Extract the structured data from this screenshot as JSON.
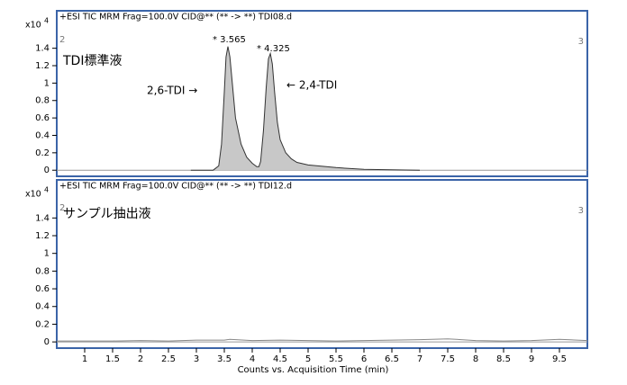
{
  "chart_data": [
    {
      "type": "area",
      "title": "+ESI TIC MRM Frag=100.0V CID@** (** -> **) TDI08.d",
      "y_scale_base": "x10",
      "y_scale_exp": "4",
      "left_marker": "2",
      "right_marker": "3",
      "annotations": [
        "TDI標準液",
        "2,6-TDI →",
        "← 2,4-TDI",
        "* 3.565",
        "* 4.325"
      ],
      "xlim": [
        0.5,
        10
      ],
      "ylim": [
        -0.07,
        1.83
      ],
      "yticks": [
        0,
        0.2,
        0.4,
        0.6,
        0.8,
        1,
        1.2,
        1.4
      ],
      "color": "#c8c8c8",
      "x": [
        2.9,
        3.3,
        3.4,
        3.45,
        3.5,
        3.53,
        3.565,
        3.6,
        3.65,
        3.7,
        3.8,
        3.9,
        4.0,
        4.08,
        4.12,
        4.15,
        4.2,
        4.25,
        4.29,
        4.325,
        4.36,
        4.4,
        4.45,
        4.5,
        4.6,
        4.7,
        4.8,
        5.0,
        5.5,
        6.0,
        6.5,
        7.0
      ],
      "values": [
        0,
        0,
        0.05,
        0.3,
        0.9,
        1.3,
        1.42,
        1.3,
        0.95,
        0.6,
        0.3,
        0.15,
        0.08,
        0.04,
        0.04,
        0.1,
        0.45,
        0.95,
        1.28,
        1.34,
        1.22,
        0.9,
        0.55,
        0.35,
        0.2,
        0.13,
        0.09,
        0.06,
        0.03,
        0.01,
        0.005,
        0
      ]
    },
    {
      "type": "line",
      "title": "+ESI TIC MRM Frag=100.0V CID@** (** -> **) TDI12.d",
      "y_scale_base": "x10",
      "y_scale_exp": "4",
      "left_marker": "2",
      "right_marker": "3",
      "annotations": [
        "サンプル抽出液"
      ],
      "xlim": [
        0.5,
        10
      ],
      "ylim": [
        -0.07,
        1.83
      ],
      "yticks": [
        0,
        0.2,
        0.4,
        0.6,
        0.8,
        1,
        1.2,
        1.4
      ],
      "xticks": [
        1,
        1.5,
        2,
        2.5,
        3,
        3.5,
        4,
        4.5,
        5,
        5.5,
        6,
        6.5,
        7,
        7.5,
        8,
        8.5,
        9,
        9.5
      ],
      "xlabel": "Counts vs. Acquisition Time (min)",
      "color": "#888888",
      "x": [
        0.5,
        1,
        1.5,
        2,
        2.5,
        3,
        3.5,
        3.6,
        4,
        4.5,
        5,
        5.5,
        6,
        6.5,
        7,
        7.5,
        8,
        8.5,
        9,
        9.5,
        10
      ],
      "values": [
        0.01,
        0.01,
        0.01,
        0.015,
        0.01,
        0.02,
        0.02,
        0.03,
        0.015,
        0.02,
        0.015,
        0.01,
        0.015,
        0.02,
        0.025,
        0.035,
        0.015,
        0.01,
        0.015,
        0.03,
        0.015
      ]
    }
  ]
}
